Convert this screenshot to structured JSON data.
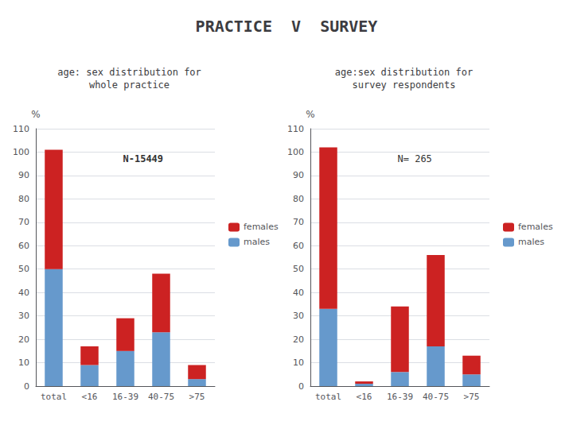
{
  "title": "PRACTICE  V  SURVEY",
  "chart_data": [
    {
      "type": "bar",
      "title": "age: sex distribution for\nwhole practice",
      "annotation": "N-15449",
      "categories": [
        "total",
        "<16",
        "16-39",
        "40-75",
        ">75"
      ],
      "series": [
        {
          "name": "males",
          "color": "#6699cc",
          "values": [
            50,
            9,
            15,
            23,
            3
          ]
        },
        {
          "name": "females",
          "color": "#cc2222",
          "values": [
            51,
            8,
            14,
            25,
            6
          ]
        }
      ],
      "stacked": true,
      "ylabel": "%",
      "ylim": [
        0,
        110
      ],
      "yticks": [
        0,
        10,
        20,
        30,
        40,
        50,
        60,
        70,
        80,
        90,
        100,
        110
      ],
      "grid": true,
      "legend": "right"
    },
    {
      "type": "bar",
      "title": "age:sex distribution for\nsurvey respondents",
      "annotation": "N= 265",
      "categories": [
        "total",
        "<16",
        "16-39",
        "40-75",
        ">75"
      ],
      "series": [
        {
          "name": "males",
          "color": "#6699cc",
          "values": [
            33,
            1,
            6,
            17,
            5
          ]
        },
        {
          "name": "females",
          "color": "#cc2222",
          "values": [
            69,
            1,
            28,
            39,
            8
          ]
        }
      ],
      "stacked": true,
      "ylabel": "%",
      "ylim": [
        0,
        110
      ],
      "yticks": [
        0,
        10,
        20,
        30,
        40,
        50,
        60,
        70,
        80,
        90,
        100,
        110
      ],
      "grid": true,
      "legend": "right"
    }
  ]
}
